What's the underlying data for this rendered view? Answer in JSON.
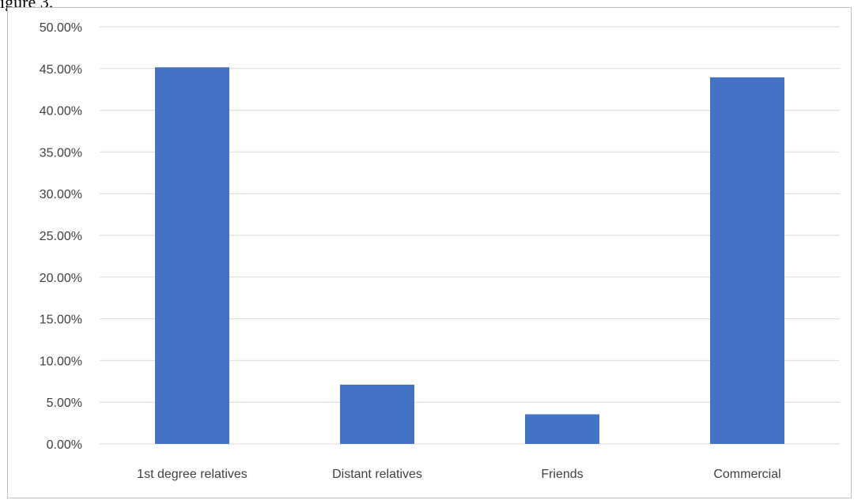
{
  "page": {
    "caption": "igure 3."
  },
  "colors": {
    "bar": "#4472c4",
    "gridline": "#d9d9d9",
    "axis_text": "#404040",
    "frame_border": "#bfbfbf"
  },
  "chart_data": {
    "type": "bar",
    "title": "",
    "xlabel": "",
    "ylabel": "",
    "categories": [
      "1st degree relatives",
      "Distant relatives",
      "Friends",
      "Commercial"
    ],
    "values": [
      0.4515,
      0.071,
      0.0355,
      0.4395
    ],
    "ylim": [
      0,
      0.5
    ],
    "yticks": [
      0,
      0.05,
      0.1,
      0.15,
      0.2,
      0.25,
      0.3,
      0.35,
      0.4,
      0.45,
      0.5
    ],
    "ytick_labels": [
      "0.00%",
      "5.00%",
      "10.00%",
      "15.00%",
      "20.00%",
      "25.00%",
      "30.00%",
      "35.00%",
      "40.00%",
      "45.00%",
      "50.00%"
    ],
    "grid": true,
    "legend": "none"
  }
}
